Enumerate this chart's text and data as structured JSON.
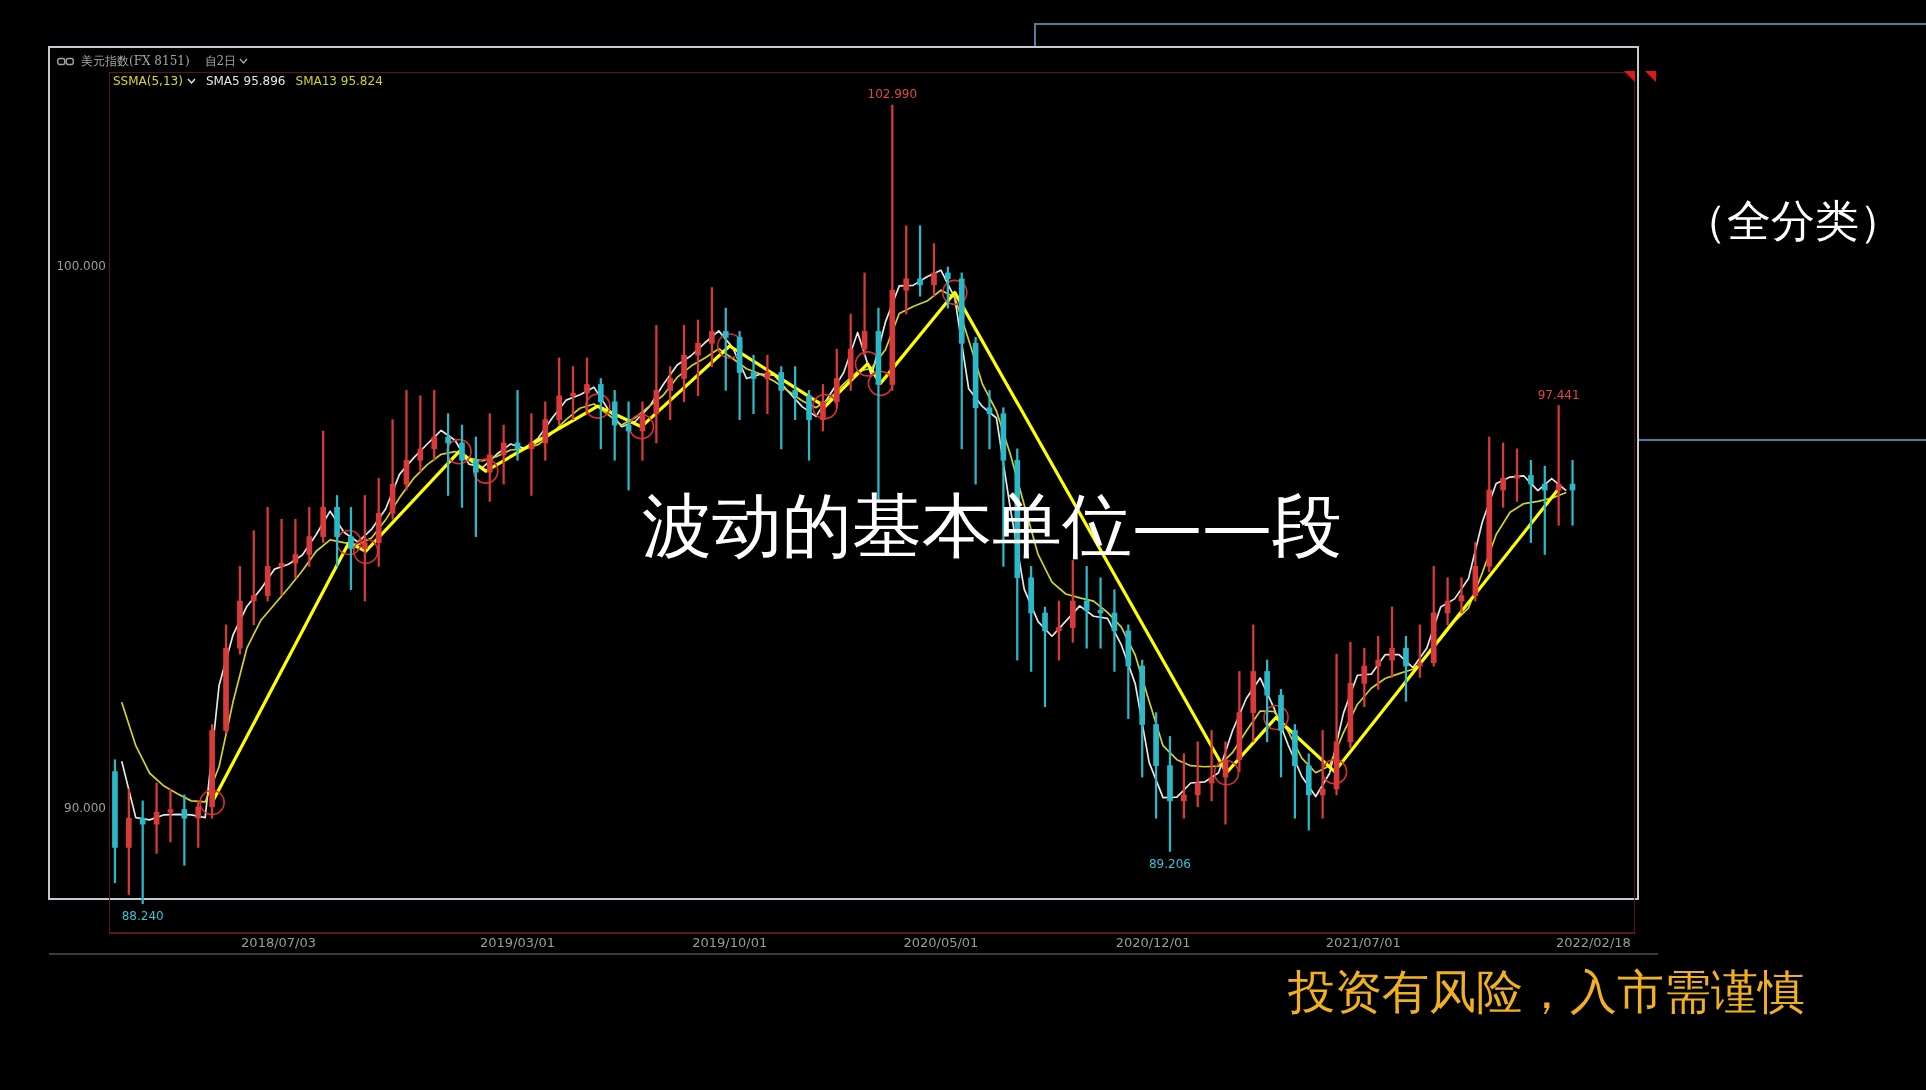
{
  "chart_data": {
    "type": "candlestick",
    "title": "美元指数(FX 8151)",
    "subtitle": "自2日",
    "legend_title": "SSMA(5,13)",
    "legend": "top left",
    "x": [
      "2018-01-19",
      "2018-02-02",
      "2018-02-16",
      "2018-03-02",
      "2018-03-16",
      "2018-03-30",
      "2018-04-13",
      "2018-04-27",
      "2018-05-11",
      "2018-05-25",
      "2018-06-08",
      "2018-06-22",
      "2018-07-06",
      "2018-07-20",
      "2018-08-03",
      "2018-08-17",
      "2018-08-31",
      "2018-09-14",
      "2018-09-28",
      "2018-10-12",
      "2018-10-26",
      "2018-11-09",
      "2018-11-23",
      "2018-12-07",
      "2018-12-21",
      "2019-01-04",
      "2019-01-18",
      "2019-02-01",
      "2019-02-15",
      "2019-03-01",
      "2019-03-15",
      "2019-03-29",
      "2019-04-12",
      "2019-04-26",
      "2019-05-10",
      "2019-05-24",
      "2019-06-07",
      "2019-06-21",
      "2019-07-05",
      "2019-07-19",
      "2019-08-02",
      "2019-08-16",
      "2019-08-30",
      "2019-09-13",
      "2019-09-27",
      "2019-10-11",
      "2019-10-25",
      "2019-11-08",
      "2019-11-22",
      "2019-12-06",
      "2019-12-20",
      "2020-01-03",
      "2020-01-17",
      "2020-01-31",
      "2020-02-14",
      "2020-02-28",
      "2020-03-13",
      "2020-03-27",
      "2020-04-10",
      "2020-04-24",
      "2020-05-08",
      "2020-05-22",
      "2020-06-05",
      "2020-06-19",
      "2020-07-03",
      "2020-07-17",
      "2020-07-31",
      "2020-08-14",
      "2020-08-28",
      "2020-09-11",
      "2020-09-25",
      "2020-10-09",
      "2020-10-23",
      "2020-11-06",
      "2020-11-20",
      "2020-12-04",
      "2020-12-18",
      "2021-01-01",
      "2021-01-15",
      "2021-01-29",
      "2021-02-12",
      "2021-02-26",
      "2021-03-12",
      "2021-03-26",
      "2021-04-09",
      "2021-04-23",
      "2021-05-07",
      "2021-05-21",
      "2021-06-04",
      "2021-06-18",
      "2021-07-02",
      "2021-07-16",
      "2021-07-30",
      "2021-08-13",
      "2021-08-27",
      "2021-09-10",
      "2021-09-24",
      "2021-10-08",
      "2021-10-22",
      "2021-11-05",
      "2021-11-19",
      "2021-12-03",
      "2021-12-17",
      "2021-12-31",
      "2022-01-14",
      "2022-01-28"
    ],
    "ohlc": [
      [
        90.68,
        90.9,
        88.63,
        89.28
      ],
      [
        89.28,
        90.36,
        88.41,
        89.82
      ],
      [
        89.82,
        90.14,
        88.24,
        89.71
      ],
      [
        89.71,
        90.47,
        89.17,
        89.93
      ],
      [
        89.93,
        90.36,
        89.38,
        89.98
      ],
      [
        89.98,
        90.25,
        88.95,
        89.82
      ],
      [
        89.82,
        90.14,
        89.28,
        90.03
      ],
      [
        90.03,
        91.55,
        89.82,
        91.44
      ],
      [
        91.44,
        93.39,
        91.39,
        92.96
      ],
      [
        92.96,
        94.47,
        92.85,
        93.83
      ],
      [
        93.83,
        95.13,
        93.39,
        93.93
      ],
      [
        93.93,
        95.56,
        93.83,
        94.47
      ],
      [
        94.47,
        95.34,
        93.93,
        94.53
      ],
      [
        94.53,
        95.34,
        94.26,
        94.69
      ],
      [
        94.69,
        95.56,
        94.47,
        95.02
      ],
      [
        95.02,
        96.97,
        94.91,
        95.56
      ],
      [
        95.56,
        95.78,
        94.47,
        95.02
      ],
      [
        95.02,
        95.56,
        94.04,
        94.8
      ],
      [
        94.8,
        95.78,
        93.83,
        94.91
      ],
      [
        94.91,
        96.1,
        94.47,
        95.45
      ],
      [
        95.45,
        97.18,
        95.34,
        95.99
      ],
      [
        95.99,
        97.72,
        95.88,
        96.43
      ],
      [
        96.43,
        97.62,
        96.21,
        96.64
      ],
      [
        96.64,
        97.72,
        96.43,
        96.86
      ],
      [
        96.86,
        97.29,
        95.78,
        96.75
      ],
      [
        96.75,
        97.08,
        95.56,
        96.43
      ],
      [
        96.43,
        96.86,
        95.02,
        96.21
      ],
      [
        96.21,
        97.29,
        95.67,
        96.53
      ],
      [
        96.53,
        97.08,
        95.99,
        96.75
      ],
      [
        96.75,
        97.72,
        96.43,
        96.64
      ],
      [
        96.64,
        97.29,
        95.78,
        96.75
      ],
      [
        96.75,
        97.51,
        96.43,
        97.18
      ],
      [
        97.18,
        98.32,
        97.08,
        97.62
      ],
      [
        97.62,
        98.16,
        97.18,
        97.67
      ],
      [
        97.67,
        98.32,
        97.29,
        97.83
      ],
      [
        97.83,
        97.94,
        96.64,
        97.51
      ],
      [
        97.51,
        97.72,
        96.43,
        97.08
      ],
      [
        97.08,
        97.51,
        95.88,
        96.97
      ],
      [
        96.97,
        97.51,
        96.43,
        97.29
      ],
      [
        97.29,
        98.92,
        96.75,
        97.72
      ],
      [
        97.72,
        98.16,
        97.18,
        97.94
      ],
      [
        97.94,
        98.92,
        97.51,
        98.37
      ],
      [
        98.37,
        99.02,
        97.62,
        98.59
      ],
      [
        98.59,
        99.62,
        98.16,
        98.81
      ],
      [
        98.81,
        99.24,
        97.72,
        98.7
      ],
      [
        98.7,
        98.81,
        97.18,
        98.05
      ],
      [
        98.05,
        98.37,
        97.29,
        97.94
      ],
      [
        97.94,
        98.37,
        97.29,
        98.05
      ],
      [
        98.05,
        98.16,
        96.64,
        97.72
      ],
      [
        97.72,
        98.16,
        97.18,
        97.62
      ],
      [
        97.62,
        97.72,
        96.43,
        97.18
      ],
      [
        97.18,
        97.83,
        96.97,
        97.51
      ],
      [
        97.51,
        98.48,
        97.4,
        97.94
      ],
      [
        97.94,
        99.13,
        97.72,
        98.48
      ],
      [
        98.48,
        99.89,
        98.37,
        98.81
      ],
      [
        98.81,
        99.24,
        95.67,
        97.83
      ],
      [
        97.83,
        102.99,
        97.72,
        99.57
      ],
      [
        99.57,
        100.76,
        99.13,
        99.78
      ],
      [
        99.78,
        100.76,
        99.46,
        99.67
      ],
      [
        99.67,
        100.43,
        99.46,
        99.89
      ],
      [
        99.89,
        100.0,
        99.24,
        99.78
      ],
      [
        99.78,
        99.89,
        96.64,
        98.59
      ],
      [
        98.59,
        98.7,
        95.99,
        97.4
      ],
      [
        97.4,
        97.72,
        96.64,
        97.29
      ],
      [
        97.29,
        97.4,
        94.47,
        96.43
      ],
      [
        96.43,
        96.64,
        92.74,
        94.26
      ],
      [
        94.26,
        94.47,
        92.53,
        93.61
      ],
      [
        93.61,
        93.72,
        91.88,
        93.28
      ],
      [
        93.28,
        93.83,
        92.74,
        93.34
      ],
      [
        93.34,
        94.58,
        93.07,
        93.83
      ],
      [
        93.83,
        94.47,
        92.96,
        93.66
      ],
      [
        93.66,
        94.26,
        92.96,
        93.61
      ],
      [
        93.61,
        94.04,
        92.53,
        93.28
      ],
      [
        93.28,
        93.39,
        91.66,
        92.63
      ],
      [
        92.63,
        92.74,
        90.58,
        91.55
      ],
      [
        91.55,
        91.77,
        89.82,
        90.79
      ],
      [
        90.79,
        91.33,
        89.206,
        90.14
      ],
      [
        90.14,
        91.01,
        89.82,
        90.25
      ],
      [
        90.25,
        91.23,
        90.03,
        90.47
      ],
      [
        90.47,
        91.44,
        90.14,
        90.58
      ],
      [
        90.58,
        91.23,
        89.71,
        90.9
      ],
      [
        90.9,
        92.53,
        90.68,
        91.77
      ],
      [
        91.77,
        93.39,
        91.23,
        92.53
      ],
      [
        92.53,
        92.74,
        91.23,
        92.09
      ],
      [
        92.09,
        92.2,
        90.58,
        91.44
      ],
      [
        91.44,
        91.55,
        89.82,
        90.79
      ],
      [
        90.79,
        91.01,
        89.6,
        90.25
      ],
      [
        90.25,
        91.44,
        89.82,
        90.36
      ],
      [
        90.36,
        92.85,
        90.25,
        91.23
      ],
      [
        91.23,
        93.07,
        91.12,
        92.31
      ],
      [
        92.31,
        92.96,
        91.88,
        92.63
      ],
      [
        92.63,
        93.18,
        92.2,
        92.74
      ],
      [
        92.74,
        93.72,
        92.42,
        92.96
      ],
      [
        92.96,
        93.18,
        91.98,
        92.63
      ],
      [
        92.63,
        93.39,
        92.42,
        92.69
      ],
      [
        92.69,
        94.47,
        92.63,
        93.61
      ],
      [
        93.61,
        94.26,
        93.39,
        93.83
      ],
      [
        93.83,
        94.26,
        93.61,
        93.93
      ],
      [
        93.93,
        94.91,
        93.83,
        94.47
      ],
      [
        94.47,
        96.86,
        94.37,
        95.88
      ],
      [
        95.88,
        96.75,
        95.56,
        96.1
      ],
      [
        96.1,
        96.64,
        95.67,
        96.15
      ],
      [
        96.15,
        96.43,
        94.91,
        95.99
      ],
      [
        95.99,
        96.32,
        94.69,
        95.88
      ],
      [
        95.88,
        97.441,
        95.23,
        95.99
      ],
      [
        95.99,
        96.43,
        95.23,
        95.88
      ]
    ],
    "colors": [
      "#2bb8c8",
      "#d83a3a",
      "#2bb8c8",
      "#d83a3a",
      "#d83a3a",
      "#2bb8c8",
      "#d83a3a",
      "#d83a3a",
      "#d83a3a",
      "#d83a3a",
      "#d83a3a",
      "#d83a3a",
      "#d83a3a",
      "#d83a3a",
      "#d83a3a",
      "#d83a3a",
      "#2bb8c8",
      "#2bb8c8",
      "#d83a3a",
      "#d83a3a",
      "#d83a3a",
      "#d83a3a",
      "#d83a3a",
      "#d83a3a",
      "#2bb8c8",
      "#2bb8c8",
      "#2bb8c8",
      "#d83a3a",
      "#d83a3a",
      "#2bb8c8",
      "#d83a3a",
      "#d83a3a",
      "#d83a3a",
      "#d83a3a",
      "#d83a3a",
      "#2bb8c8",
      "#2bb8c8",
      "#2bb8c8",
      "#d83a3a",
      "#d83a3a",
      "#d83a3a",
      "#d83a3a",
      "#d83a3a",
      "#d83a3a",
      "#2bb8c8",
      "#2bb8c8",
      "#2bb8c8",
      "#d83a3a",
      "#2bb8c8",
      "#2bb8c8",
      "#2bb8c8",
      "#d83a3a",
      "#d83a3a",
      "#d83a3a",
      "#d83a3a",
      "#2bb8c8",
      "#d83a3a",
      "#d83a3a",
      "#2bb8c8",
      "#d83a3a",
      "#2bb8c8",
      "#2bb8c8",
      "#2bb8c8",
      "#2bb8c8",
      "#2bb8c8",
      "#2bb8c8",
      "#2bb8c8",
      "#2bb8c8",
      "#d83a3a",
      "#d83a3a",
      "#2bb8c8",
      "#2bb8c8",
      "#2bb8c8",
      "#2bb8c8",
      "#2bb8c8",
      "#2bb8c8",
      "#2bb8c8",
      "#d83a3a",
      "#d83a3a",
      "#d83a3a",
      "#d83a3a",
      "#d83a3a",
      "#d83a3a",
      "#2bb8c8",
      "#2bb8c8",
      "#2bb8c8",
      "#2bb8c8",
      "#d83a3a",
      "#d83a3a",
      "#d83a3a",
      "#d83a3a",
      "#d83a3a",
      "#d83a3a",
      "#2bb8c8",
      "#d83a3a",
      "#d83a3a",
      "#d83a3a",
      "#d83a3a",
      "#d83a3a",
      "#d83a3a",
      "#d83a3a",
      "#d83a3a",
      "#2bb8c8",
      "#2bb8c8",
      "#d83a3a",
      "#2bb8c8"
    ],
    "series": [
      {
        "name": "SMA5 95.896",
        "type": "line",
        "color": "#e6e6e6",
        "x": [
          "2018-01-26",
          "2018-02-09",
          "2018-02-23",
          "2018-03-09",
          "2018-03-23",
          "2018-04-06",
          "2018-04-20",
          "2018-05-04",
          "2018-05-18",
          "2018-06-01",
          "2018-06-15",
          "2018-06-29",
          "2018-07-13",
          "2018-07-27",
          "2018-08-10",
          "2018-08-24",
          "2018-09-07",
          "2018-09-21",
          "2018-10-05",
          "2018-10-19",
          "2018-11-02",
          "2018-11-16",
          "2018-11-30",
          "2018-12-14",
          "2018-12-28",
          "2019-01-11",
          "2019-01-25",
          "2019-02-08",
          "2019-02-22",
          "2019-03-08",
          "2019-03-22",
          "2019-04-05",
          "2019-04-19",
          "2019-05-03",
          "2019-05-17",
          "2019-05-31",
          "2019-06-14",
          "2019-06-28",
          "2019-07-12",
          "2019-07-26",
          "2019-08-09",
          "2019-08-23",
          "2019-09-06",
          "2019-09-20",
          "2019-10-04",
          "2019-10-18",
          "2019-11-01",
          "2019-11-15",
          "2019-11-29",
          "2019-12-13",
          "2019-12-27",
          "2020-01-10",
          "2020-01-24",
          "2020-02-07",
          "2020-02-21",
          "2020-03-06",
          "2020-03-20",
          "2020-04-03",
          "2020-04-17",
          "2020-05-01",
          "2020-05-15",
          "2020-05-29",
          "2020-06-12",
          "2020-06-26",
          "2020-07-10",
          "2020-07-24",
          "2020-08-07",
          "2020-08-21",
          "2020-09-04",
          "2020-09-18",
          "2020-10-02",
          "2020-10-16",
          "2020-10-30",
          "2020-11-13",
          "2020-11-27",
          "2020-12-11",
          "2020-12-25",
          "2021-01-08",
          "2021-01-22",
          "2021-02-05",
          "2021-02-19",
          "2021-03-05",
          "2021-03-19",
          "2021-04-02",
          "2021-04-16",
          "2021-04-30",
          "2021-05-14",
          "2021-05-28",
          "2021-06-11",
          "2021-06-25",
          "2021-07-09",
          "2021-07-23",
          "2021-08-06",
          "2021-08-20",
          "2021-09-03",
          "2021-09-17",
          "2021-10-01",
          "2021-10-15",
          "2021-10-29",
          "2021-11-12",
          "2021-11-26",
          "2021-12-10",
          "2021-12-24",
          "2022-01-07",
          "2022-01-21"
        ],
        "values": [
          90.86,
          89.83,
          89.79,
          89.88,
          89.89,
          89.88,
          89.83,
          92.27,
          93.2,
          93.73,
          94.05,
          94.42,
          94.51,
          94.68,
          95.06,
          95.49,
          95.1,
          94.92,
          95.16,
          95.53,
          96.17,
          96.47,
          96.73,
          96.98,
          96.8,
          96.36,
          96.3,
          96.54,
          96.73,
          96.65,
          96.84,
          97.21,
          97.54,
          97.64,
          97.78,
          97.38,
          97.05,
          97.15,
          97.42,
          97.83,
          98.19,
          98.36,
          98.6,
          98.82,
          98.51,
          97.94,
          98.02,
          98.0,
          97.7,
          97.42,
          97.24,
          97.64,
          98.05,
          98.79,
          97.99,
          98.98,
          99.65,
          99.66,
          99.82,
          99.94,
          99.43,
          97.75,
          97.42,
          97.21,
          95.54,
          94.05,
          93.45,
          93.18,
          93.46,
          93.74,
          93.55,
          93.51,
          93.02,
          92.3,
          90.85,
          90.2,
          90.21,
          90.47,
          90.49,
          90.66,
          91.43,
          92.03,
          92.41,
          91.85,
          91.18,
          90.59,
          90.22,
          90.65,
          91.76,
          92.46,
          92.48,
          92.84,
          92.84,
          92.6,
          92.96,
          93.72,
          93.87,
          94.24,
          95.29,
          96.0,
          96.12,
          96.14,
          95.87,
          96.09,
          95.88
        ]
      },
      {
        "name": "SMA13 95.824",
        "type": "line",
        "color": "#d2d228",
        "x": [
          "2018-01-26",
          "2018-02-09",
          "2018-02-23",
          "2018-03-09",
          "2018-03-23",
          "2018-04-06",
          "2018-04-20",
          "2018-05-04",
          "2018-05-18",
          "2018-06-01",
          "2018-06-15",
          "2018-06-29",
          "2018-07-13",
          "2018-07-27",
          "2018-08-10",
          "2018-08-24",
          "2018-09-07",
          "2018-09-21",
          "2018-10-05",
          "2018-10-19",
          "2018-11-02",
          "2018-11-16",
          "2018-11-30",
          "2018-12-14",
          "2018-12-28",
          "2019-01-11",
          "2019-01-25",
          "2019-02-08",
          "2019-02-22",
          "2019-03-08",
          "2019-03-22",
          "2019-04-05",
          "2019-04-19",
          "2019-05-03",
          "2019-05-17",
          "2019-05-31",
          "2019-06-14",
          "2019-06-28",
          "2019-07-12",
          "2019-07-26",
          "2019-08-09",
          "2019-08-23",
          "2019-09-06",
          "2019-09-20",
          "2019-10-04",
          "2019-10-18",
          "2019-11-01",
          "2019-11-15",
          "2019-11-29",
          "2019-12-13",
          "2019-12-27",
          "2020-01-10",
          "2020-01-24",
          "2020-02-07",
          "2020-02-21",
          "2020-03-06",
          "2020-03-20",
          "2020-04-03",
          "2020-04-17",
          "2020-05-01",
          "2020-05-15",
          "2020-05-29",
          "2020-06-12",
          "2020-06-26",
          "2020-07-10",
          "2020-07-24",
          "2020-08-07",
          "2020-08-21",
          "2020-09-04",
          "2020-09-18",
          "2020-10-02",
          "2020-10-16",
          "2020-10-30",
          "2020-11-13",
          "2020-11-27",
          "2020-12-11",
          "2020-12-25",
          "2021-01-08",
          "2021-01-22",
          "2021-02-05",
          "2021-02-19",
          "2021-03-05",
          "2021-03-19",
          "2021-04-02",
          "2021-04-16",
          "2021-04-30",
          "2021-05-14",
          "2021-05-28",
          "2021-06-11",
          "2021-06-25",
          "2021-07-09",
          "2021-07-23",
          "2021-08-06",
          "2021-08-20",
          "2021-09-03",
          "2021-09-17",
          "2021-10-01",
          "2021-10-15",
          "2021-10-29",
          "2021-11-12",
          "2021-11-26",
          "2021-12-10",
          "2021-12-24",
          "2022-01-07",
          "2022-01-21"
        ],
        "values": [
          91.95,
          91.16,
          90.65,
          90.42,
          90.27,
          90.14,
          90.12,
          90.77,
          91.96,
          92.96,
          93.47,
          93.77,
          94.07,
          94.39,
          94.75,
          94.96,
          94.91,
          94.87,
          95.0,
          95.33,
          95.74,
          96.09,
          96.35,
          96.54,
          96.59,
          96.47,
          96.42,
          96.5,
          96.62,
          96.64,
          96.72,
          96.93,
          97.18,
          97.39,
          97.47,
          97.28,
          97.08,
          97.22,
          97.43,
          97.63,
          97.96,
          98.17,
          98.32,
          98.49,
          98.31,
          98.12,
          98.02,
          97.89,
          97.71,
          97.53,
          97.4,
          97.57,
          97.84,
          98.07,
          98.13,
          98.47,
          99.14,
          99.27,
          99.37,
          99.57,
          99.44,
          98.65,
          97.83,
          97.34,
          96.54,
          95.61,
          94.69,
          94.18,
          93.96,
          93.89,
          93.83,
          93.62,
          93.35,
          92.83,
          91.98,
          91.16,
          90.9,
          90.79,
          90.77,
          90.78,
          91.03,
          91.43,
          91.8,
          91.79,
          91.43,
          90.93,
          90.66,
          90.79,
          91.4,
          91.92,
          92.22,
          92.4,
          92.49,
          92.57,
          92.81,
          93.12,
          93.45,
          93.7,
          94.35,
          95.06,
          95.47,
          95.63,
          95.67,
          95.73,
          95.83
        ]
      },
      {
        "type": "line",
        "color": "#ffff00",
        "x": [
          "2018-04-27",
          "2018-09-12",
          "2018-09-29",
          "2019-01-01",
          "2019-01-28",
          "2019-05-21",
          "2019-07-04",
          "2019-10-01",
          "2020-01-05",
          "2020-02-17",
          "2020-03-01",
          "2020-05-15",
          "2021-02-13",
          "2021-04-04",
          "2021-06-02",
          "2022-01-13"
        ],
        "values": [
          90.11,
          94.91,
          94.75,
          96.59,
          96.23,
          97.43,
          97.05,
          98.54,
          97.42,
          98.21,
          97.85,
          99.53,
          90.66,
          91.68,
          90.68,
          95.88
        ]
      },
      {
        "type": "scatter",
        "color": "#d83030",
        "marker": "circle",
        "x": [
          "2018-04-27",
          "2018-09-12",
          "2018-09-29",
          "2019-01-01",
          "2019-01-28",
          "2019-05-21",
          "2019-07-04",
          "2019-10-01",
          "2020-01-05",
          "2020-02-17",
          "2020-03-01",
          "2020-05-15",
          "2021-02-13",
          "2021-04-04",
          "2021-06-02"
        ],
        "values": [
          90.11,
          94.91,
          94.75,
          96.59,
          96.23,
          97.43,
          97.05,
          98.54,
          97.42,
          98.21,
          97.85,
          99.53,
          90.66,
          91.68,
          90.68
        ]
      }
    ],
    "xlim": [
      "2018-01-13",
      "2022-04-01"
    ],
    "xticks": [
      {
        "value": "2018-07-03",
        "label": "2018/07/03"
      },
      {
        "value": "2019-03-01",
        "label": "2019/03/01"
      },
      {
        "value": "2019-10-01",
        "label": "2019/10/01"
      },
      {
        "value": "2020-05-01",
        "label": "2020/05/01"
      },
      {
        "value": "2020-12-01",
        "label": "2020/12/01"
      },
      {
        "value": "2021-07-01",
        "label": "2021/07/01"
      },
      {
        "value": "2022-02-18",
        "label": "2022/02/18"
      }
    ],
    "ylim": [
      87.7,
      103.6
    ],
    "yticks": [
      {
        "value": 90,
        "label": "90.000"
      },
      {
        "value": 100,
        "label": "100.000"
      }
    ],
    "annotations": [
      {
        "text": "102.990",
        "x": "2020-03-13",
        "y": 102.99
      },
      {
        "text": "97.441",
        "x": "2022-01-14",
        "y": 97.441
      },
      {
        "text": "89.206",
        "x": "2020-12-18",
        "y": 89.206
      },
      {
        "text": "88.240",
        "x": "2018-02-16",
        "y": 88.24
      },
      "波动的基本单位——段",
      "投资有风险，入市需谨慎",
      "（全分类）"
    ]
  }
}
